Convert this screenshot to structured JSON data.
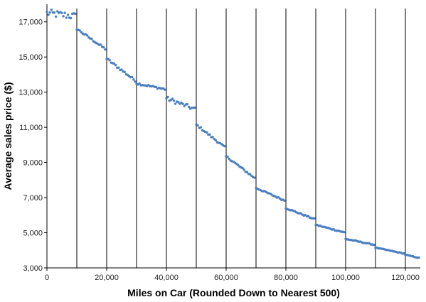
{
  "chart_data": {
    "type": "scatter",
    "title": "",
    "xlabel": "Miles on Car (Rounded Down to Nearest 500)",
    "ylabel": "Average sales price ($)",
    "xlim": [
      0,
      125000
    ],
    "ylim": [
      3000,
      18000
    ],
    "x_ticks": [
      0,
      20000,
      40000,
      60000,
      80000,
      100000,
      120000
    ],
    "x_tick_labels": [
      "0",
      "20,000",
      "40,000",
      "60,000",
      "80,000",
      "100,000",
      "120,000"
    ],
    "y_ticks": [
      3000,
      5000,
      7000,
      9000,
      11000,
      13000,
      15000,
      17000
    ],
    "y_tick_labels": [
      "3,000",
      "5,000",
      "7,000",
      "9,000",
      "11,000",
      "13,000",
      "15,000",
      "17,000"
    ],
    "vertical_lines_x": [
      10000,
      20000,
      30000,
      40000,
      50000,
      60000,
      70000,
      80000,
      90000,
      100000,
      110000,
      120000
    ],
    "grid": false,
    "legend": "none",
    "point_color": "#4a7fc1",
    "line_color": "#000000",
    "segments": [
      {
        "x_start": 0,
        "x_end": 10000,
        "y_start": 17500,
        "y_end": 17300,
        "noise": 220
      },
      {
        "x_start": 10000,
        "x_end": 20000,
        "y_start": 16600,
        "y_end": 15400,
        "noise": 60
      },
      {
        "x_start": 20000,
        "x_end": 30000,
        "y_start": 14900,
        "y_end": 13600,
        "noise": 70
      },
      {
        "x_start": 30000,
        "x_end": 40000,
        "y_start": 13500,
        "y_end": 13150,
        "noise": 60
      },
      {
        "x_start": 40000,
        "x_end": 50000,
        "y_start": 12650,
        "y_end": 12000,
        "noise": 120
      },
      {
        "x_start": 50000,
        "x_end": 60000,
        "y_start": 11150,
        "y_end": 9800,
        "noise": 60
      },
      {
        "x_start": 60000,
        "x_end": 70000,
        "y_start": 9350,
        "y_end": 8050,
        "noise": 50
      },
      {
        "x_start": 70000,
        "x_end": 80000,
        "y_start": 7550,
        "y_end": 6800,
        "noise": 40
      },
      {
        "x_start": 80000,
        "x_end": 90000,
        "y_start": 6400,
        "y_end": 5750,
        "noise": 35
      },
      {
        "x_start": 90000,
        "x_end": 100000,
        "y_start": 5450,
        "y_end": 5000,
        "noise": 30
      },
      {
        "x_start": 100000,
        "x_end": 110000,
        "y_start": 4650,
        "y_end": 4300,
        "noise": 25
      },
      {
        "x_start": 110000,
        "x_end": 120000,
        "y_start": 4150,
        "y_end": 3800,
        "noise": 20
      },
      {
        "x_start": 120000,
        "x_end": 125000,
        "y_start": 3750,
        "y_end": 3550,
        "noise": 15
      }
    ]
  }
}
